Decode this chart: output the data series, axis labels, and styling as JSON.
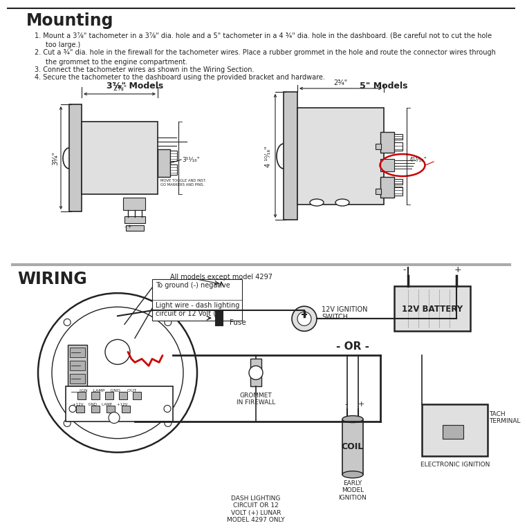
{
  "title_mounting": "Mounting",
  "inst1": "Mount a 3⅞\" tachometer in a 3⅞\" dia. hole and a 5\" tachometer in a 4 ¾\" dia. hole in the dashboard. (Be careful not to cut the hole",
  "inst1b": "too large.)",
  "inst2": "Cut a ¾\" dia. hole in the firewall for the tachometer wires. Place a rubber grommet in the hole and route the connector wires through",
  "inst2b": "the grommet to the engine compartment.",
  "inst3": "Connect the tachometer wires as shown in the Wiring Section.",
  "inst4": "Secure the tachometer to the dashboard using the provided bracket and hardware.",
  "model_label_small": "3⅞\" Models",
  "model_label_large": "5\" Models",
  "dim_small_width": "2⅛\"",
  "dim_small_height": "3¾\"",
  "dim_small_depth": "3¹¹⁄₁₆\"",
  "dim_large_width": "2¾\"",
  "dim_large_height": "4 ¹⁰⁄₁₆\"",
  "dim_large_depth": "4¹³⁄₁₆\"",
  "title_wiring": "WIRING",
  "wiring_note": "All models except model 4297",
  "label_ground": "To ground (-) negative",
  "label_light": "Light wire - dash lighting\ncircuit or 12 Volt (+)",
  "label_switch": "12V IGNITION\nSWITCH",
  "label_fuse": "Fuse",
  "label_battery": "12V BATTERY",
  "label_or": "- OR -",
  "label_grommet": "GROMMET\nIN FIREWALL",
  "label_dash": "DASH LIGHTING\nCIRCUIT OR 12\nVOLT (+) LUNAR\nMODEL 4297 ONLY",
  "label_coil": "COIL",
  "label_early": "EARLY\nMODEL\nIGNITION",
  "label_tach_term": "TACH\nTERMINAL",
  "label_elec": "ELECTRONIC IGNITION",
  "label_minus": "-",
  "label_plus": "+",
  "bg_color": "#ffffff",
  "line_color": "#222222",
  "red_color": "#cc0000",
  "gray_face": "#e0e0e0",
  "gray_body": "#c8c8c8",
  "gray_conn": "#b0b0b0",
  "gray_mid": "#888888",
  "divider_color": "#aaaaaa"
}
